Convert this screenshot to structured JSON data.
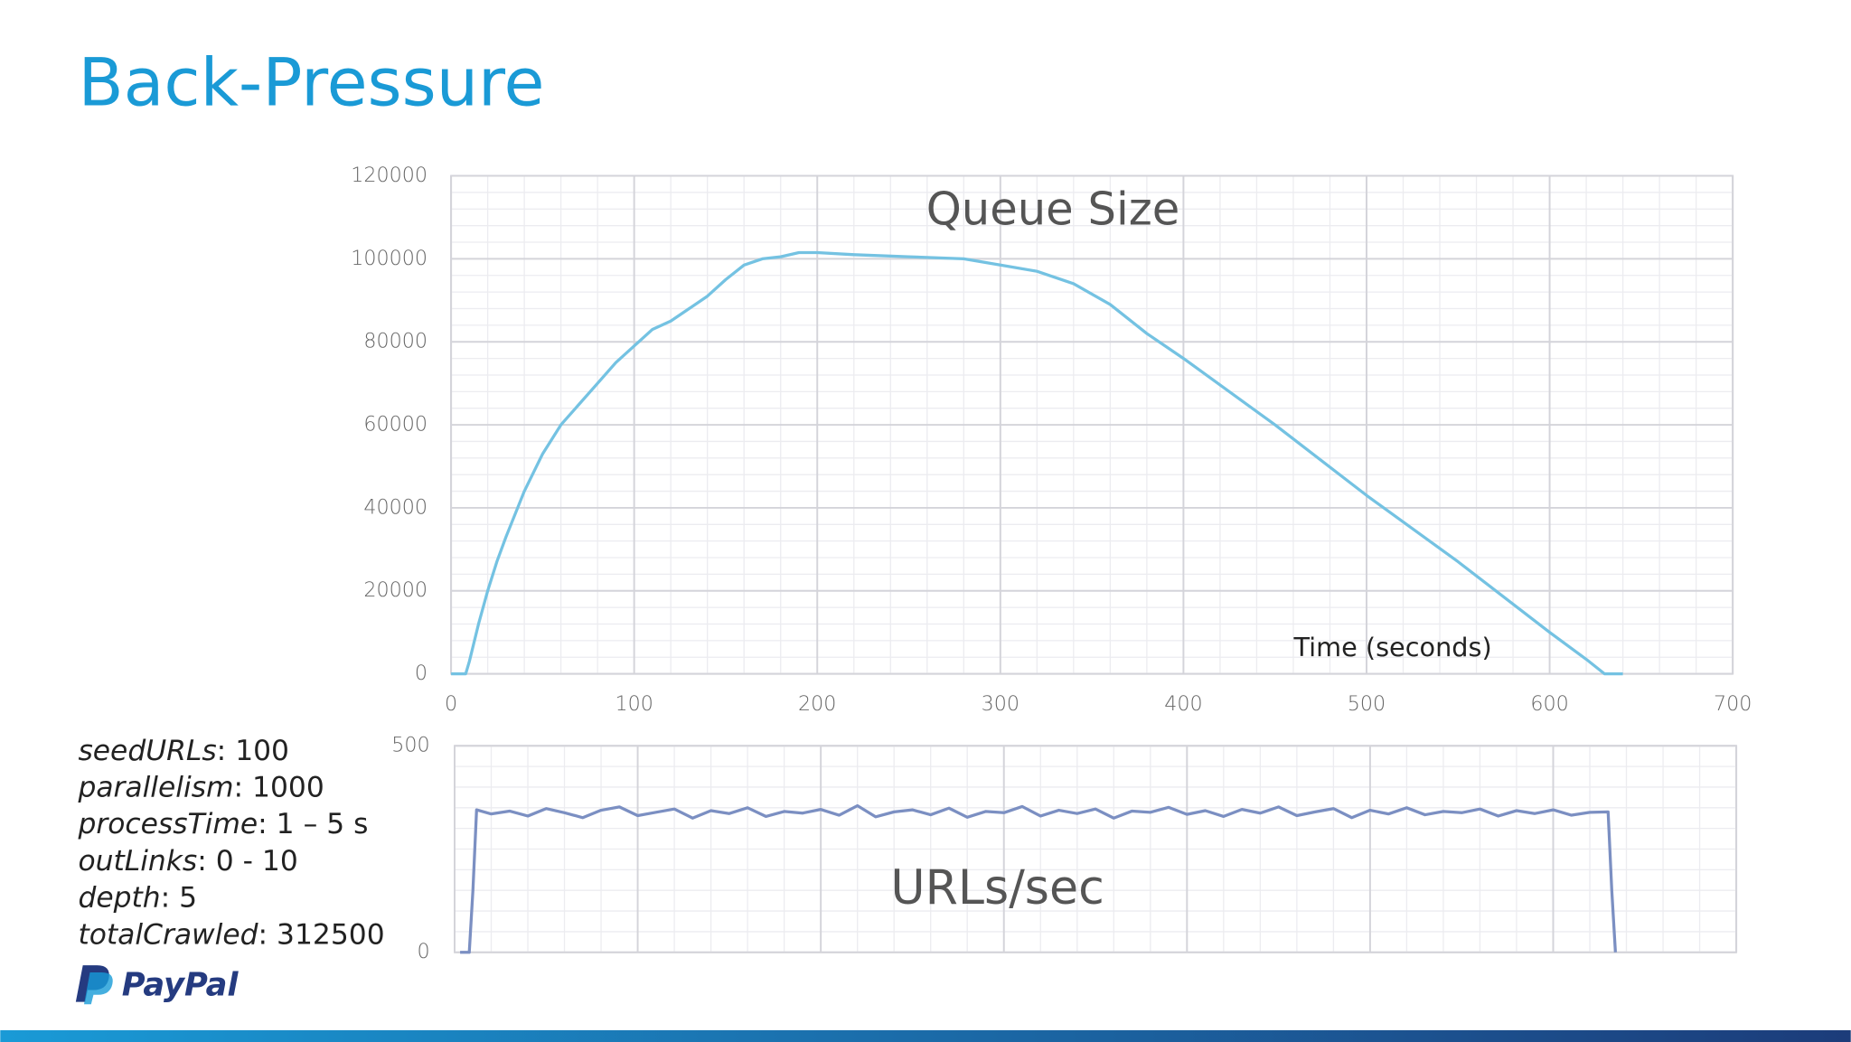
{
  "title": "Back-Pressure",
  "parameters": [
    {
      "name": "seedURLs",
      "value": ": 100"
    },
    {
      "name": "parallelism",
      "value": ": 1000"
    },
    {
      "name": "processTime",
      "value": ": 1 – 5 s"
    },
    {
      "name": "outLinks",
      "value": ": 0 - 10"
    },
    {
      "name": "depth",
      "value": ": 5"
    },
    {
      "name": "totalCrawled",
      "value": ": 312500"
    }
  ],
  "logo": "PayPal",
  "chart_data": [
    {
      "type": "line",
      "title": "Queue Size",
      "x_label": "Time (seconds)",
      "xlim": [
        0,
        700
      ],
      "xticks": [
        0,
        100,
        200,
        300,
        400,
        500,
        600,
        700
      ],
      "xtick_labels": true,
      "ylim": [
        0,
        120000
      ],
      "yticks": [
        0,
        20000,
        40000,
        60000,
        80000,
        100000,
        120000
      ],
      "grid": true,
      "minor_grid": true,
      "series": [
        {
          "name": "Queue Size",
          "color": "#74c2e2",
          "x": [
            0,
            8,
            10,
            15,
            20,
            25,
            30,
            40,
            50,
            60,
            70,
            80,
            90,
            100,
            110,
            120,
            130,
            140,
            150,
            160,
            170,
            180,
            190,
            200,
            220,
            250,
            280,
            300,
            320,
            340,
            360,
            380,
            400,
            450,
            500,
            550,
            600,
            620,
            630,
            640
          ],
          "values": [
            0,
            0,
            3000,
            12000,
            20000,
            27000,
            33000,
            44000,
            53000,
            60000,
            65000,
            70000,
            75000,
            79000,
            83000,
            85000,
            88000,
            91000,
            95000,
            98500,
            100000,
            100500,
            101500,
            101500,
            101000,
            100500,
            100000,
            98500,
            97000,
            94000,
            89000,
            82000,
            76000,
            60000,
            43000,
            27000,
            10000,
            3500,
            0,
            0
          ]
        }
      ]
    },
    {
      "type": "line",
      "title": "URLs/sec",
      "xlim": [
        0,
        700
      ],
      "xticks": [
        0,
        100,
        200,
        300,
        400,
        500,
        600,
        700
      ],
      "xtick_labels": false,
      "ylim": [
        0,
        500
      ],
      "yticks": [
        0,
        500
      ],
      "grid": true,
      "minor_grid": true,
      "series": [
        {
          "name": "URLs/sec",
          "color": "#7b8fc2",
          "x": [
            3,
            8,
            10,
            12,
            20,
            30,
            40,
            50,
            60,
            70,
            80,
            90,
            100,
            110,
            120,
            130,
            140,
            150,
            160,
            170,
            180,
            190,
            200,
            210,
            220,
            230,
            240,
            250,
            260,
            270,
            280,
            290,
            300,
            310,
            320,
            330,
            340,
            350,
            360,
            370,
            380,
            390,
            400,
            410,
            420,
            430,
            440,
            450,
            460,
            470,
            480,
            490,
            500,
            510,
            520,
            530,
            540,
            550,
            560,
            570,
            580,
            590,
            600,
            610,
            620,
            630,
            632,
            634
          ],
          "values": [
            0,
            0,
            150,
            345,
            335,
            342,
            330,
            348,
            338,
            326,
            344,
            352,
            331,
            339,
            347,
            325,
            343,
            336,
            350,
            329,
            341,
            337,
            346,
            332,
            355,
            328,
            340,
            345,
            333,
            349,
            327,
            341,
            338,
            353,
            330,
            344,
            336,
            347,
            325,
            342,
            339,
            351,
            334,
            343,
            329,
            346,
            337,
            352,
            331,
            340,
            348,
            326,
            344,
            335,
            350,
            333,
            341,
            338,
            347,
            330,
            343,
            336,
            345,
            332,
            339,
            340,
            150,
            0
          ]
        }
      ]
    }
  ]
}
